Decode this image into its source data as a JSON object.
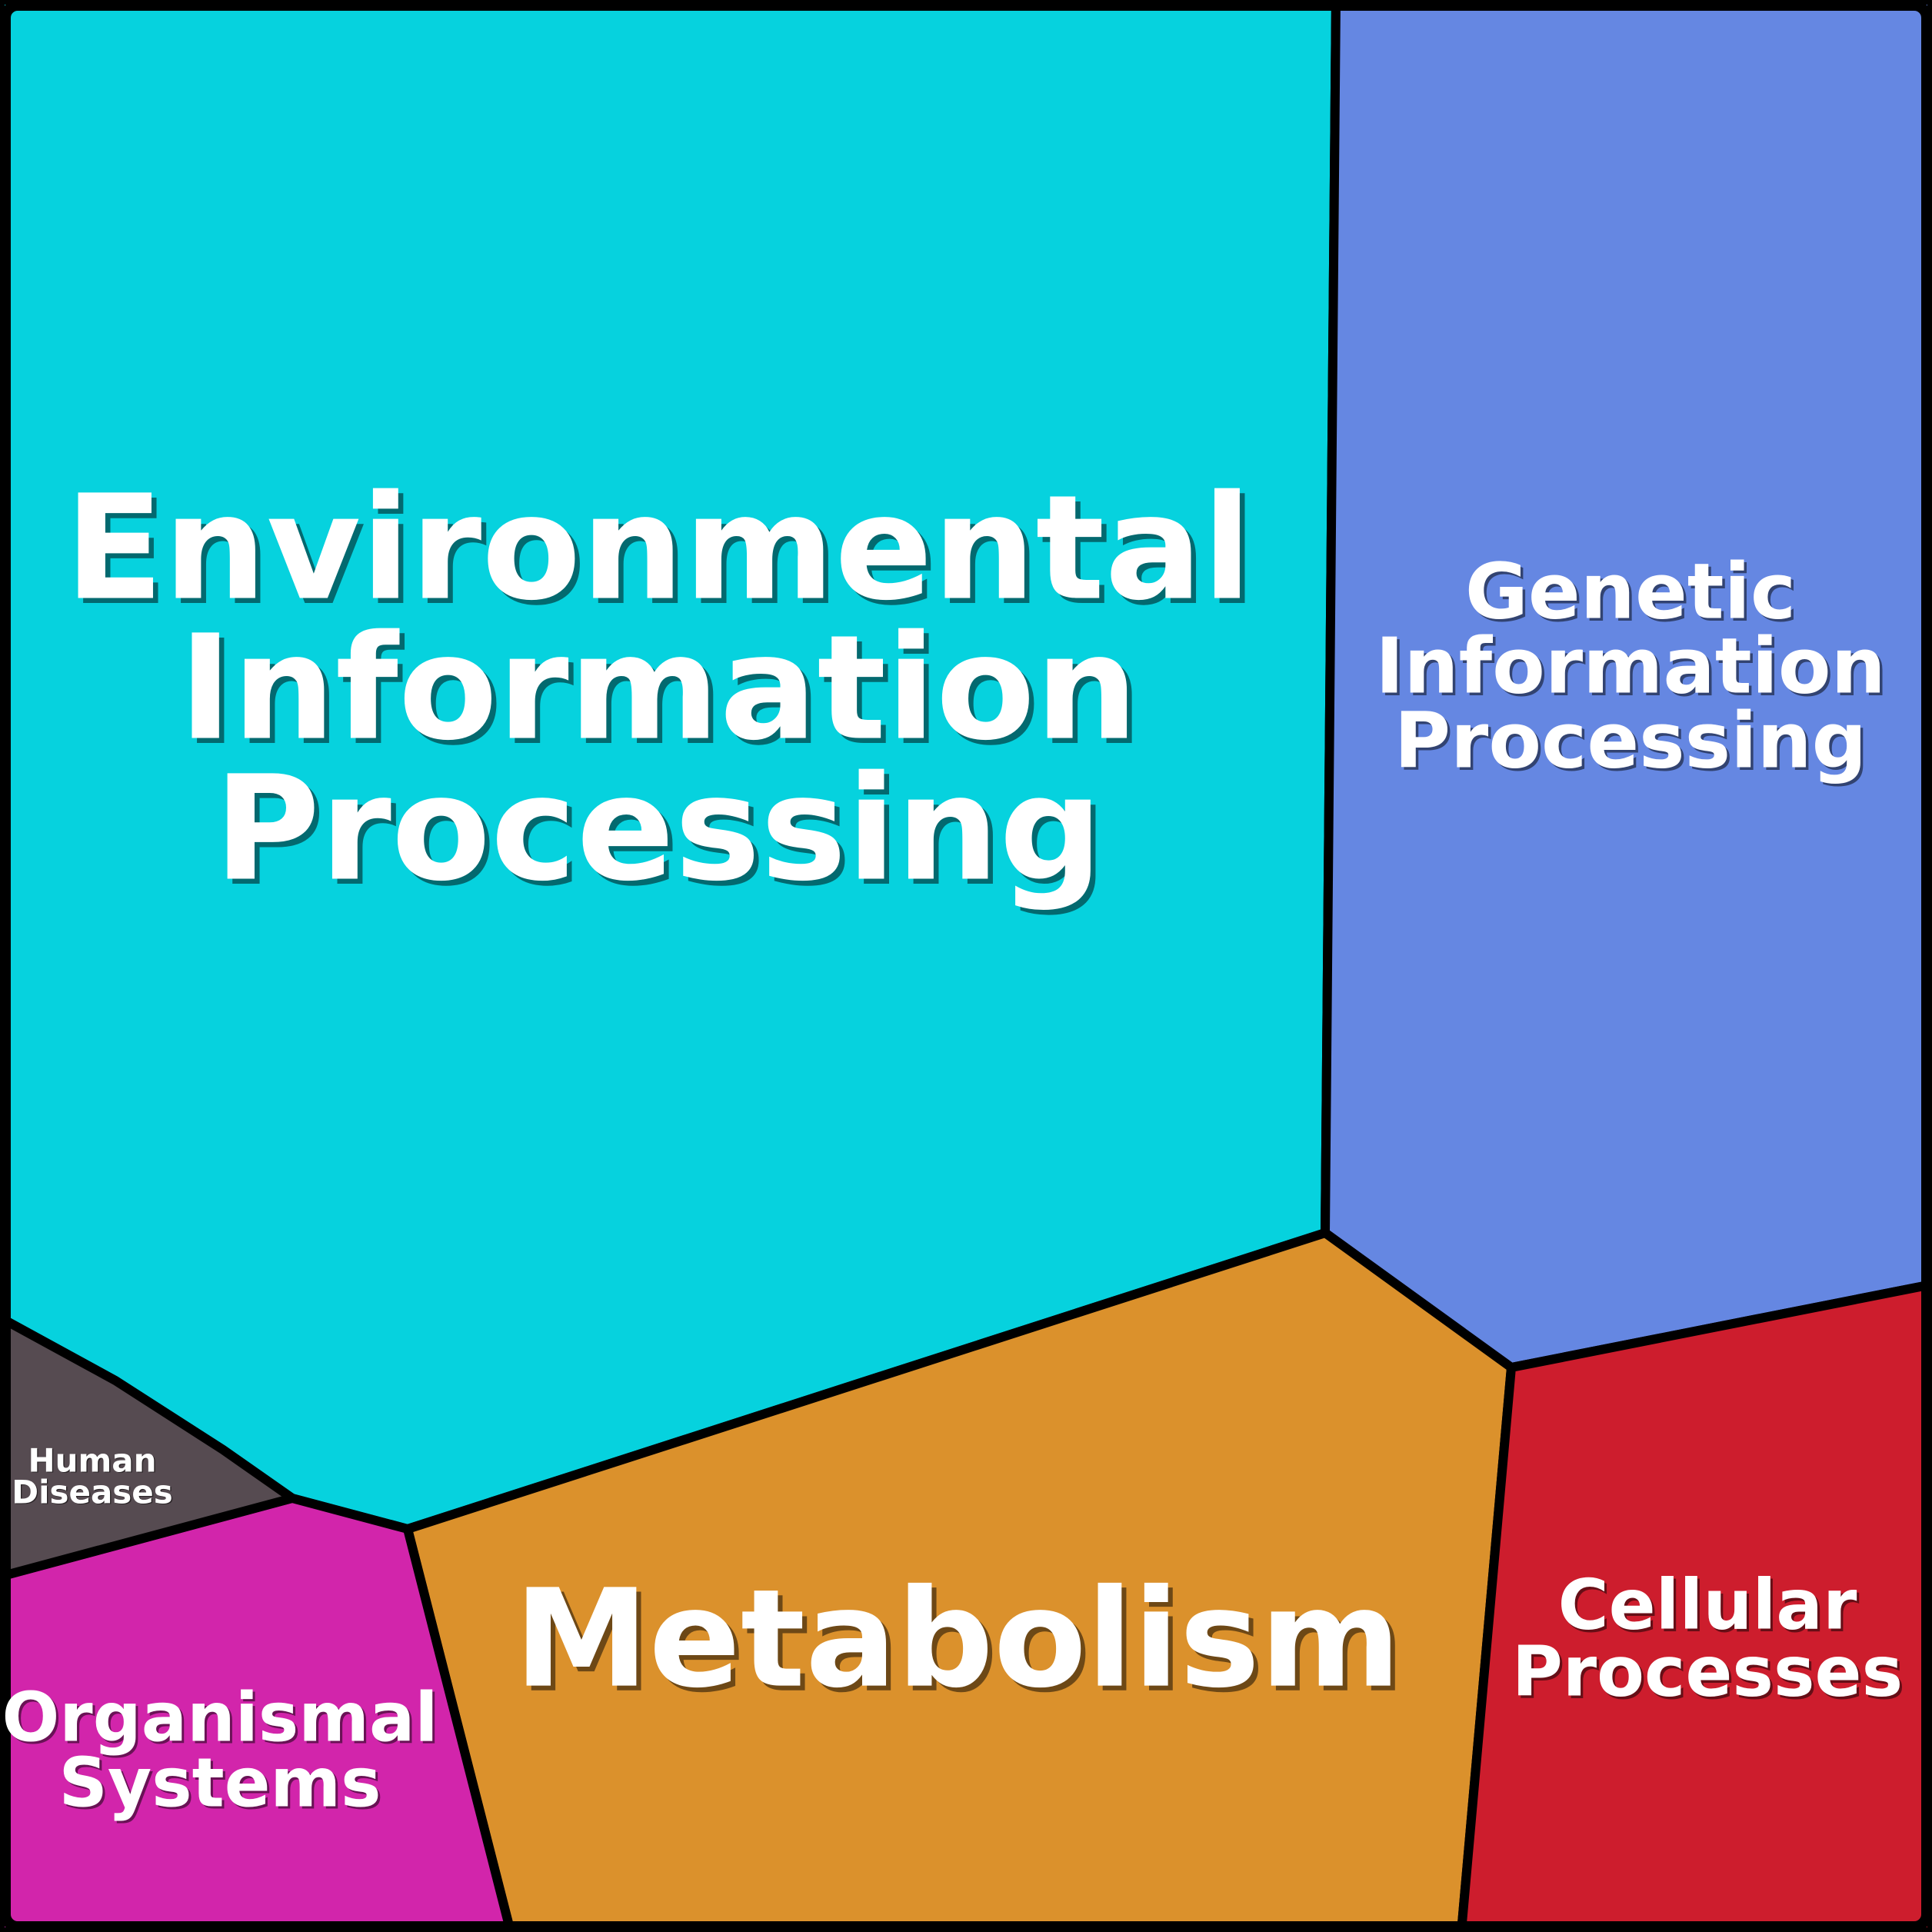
{
  "figure": {
    "background_color": "#000000",
    "frame_color": "#000000",
    "label_color": "#FFFFFF"
  },
  "chart_data": {
    "type": "treemap",
    "subtype": "voronoi-treemap",
    "legend": "none",
    "gridlines": false,
    "border_width_px": 12,
    "categories": [
      "Environmental Information Processing",
      "Genetic Information Processing",
      "Metabolism",
      "Cellular Processes",
      "Organismal Systems",
      "Human Diseases"
    ],
    "values_area_pct_est": [
      50,
      20,
      16,
      7,
      5,
      1
    ],
    "regions": [
      {
        "id": "environmental-information-processing",
        "label": "Environmental\nInformation\nProcessing",
        "color": "#06D2DE",
        "area_pct_est": 50,
        "polygon": [
          [
            0,
            0
          ],
          [
            1737,
            0
          ],
          [
            1723,
            1603
          ],
          [
            530,
            1988
          ],
          [
            380,
            1948
          ],
          [
            290,
            1885
          ],
          [
            150,
            1795
          ],
          [
            0,
            1713
          ]
        ]
      },
      {
        "id": "genetic-information-processing",
        "label": "Genetic\nInformation\nProcessing",
        "color": "#6587E2",
        "area_pct_est": 20,
        "polygon": [
          [
            1737,
            0
          ],
          [
            2512,
            0
          ],
          [
            2512,
            1670
          ],
          [
            1965,
            1778
          ],
          [
            1723,
            1603
          ]
        ]
      },
      {
        "id": "metabolism",
        "label": "Metabolism",
        "color": "#DB912C",
        "area_pct_est": 16,
        "polygon": [
          [
            1723,
            1603
          ],
          [
            1965,
            1778
          ],
          [
            1900,
            2512
          ],
          [
            664,
            2512
          ],
          [
            530,
            1988
          ]
        ]
      },
      {
        "id": "cellular-processes",
        "label": "Cellular\nProcesses",
        "color": "#CD1D2D",
        "area_pct_est": 7,
        "polygon": [
          [
            1965,
            1778
          ],
          [
            2512,
            1670
          ],
          [
            2512,
            2512
          ],
          [
            1900,
            2512
          ]
        ]
      },
      {
        "id": "organismal-systems",
        "label": "Organismal\nSystems",
        "color": "#D225AB",
        "area_pct_est": 5,
        "polygon": [
          [
            380,
            1948
          ],
          [
            530,
            1988
          ],
          [
            664,
            2512
          ],
          [
            0,
            2512
          ],
          [
            0,
            2050
          ]
        ]
      },
      {
        "id": "human-diseases",
        "label": "Human\nDiseases",
        "color": "#564B51",
        "area_pct_est": 1,
        "polygon": [
          [
            0,
            1713
          ],
          [
            150,
            1795
          ],
          [
            290,
            1885
          ],
          [
            380,
            1948
          ],
          [
            0,
            2050
          ]
        ]
      }
    ]
  }
}
